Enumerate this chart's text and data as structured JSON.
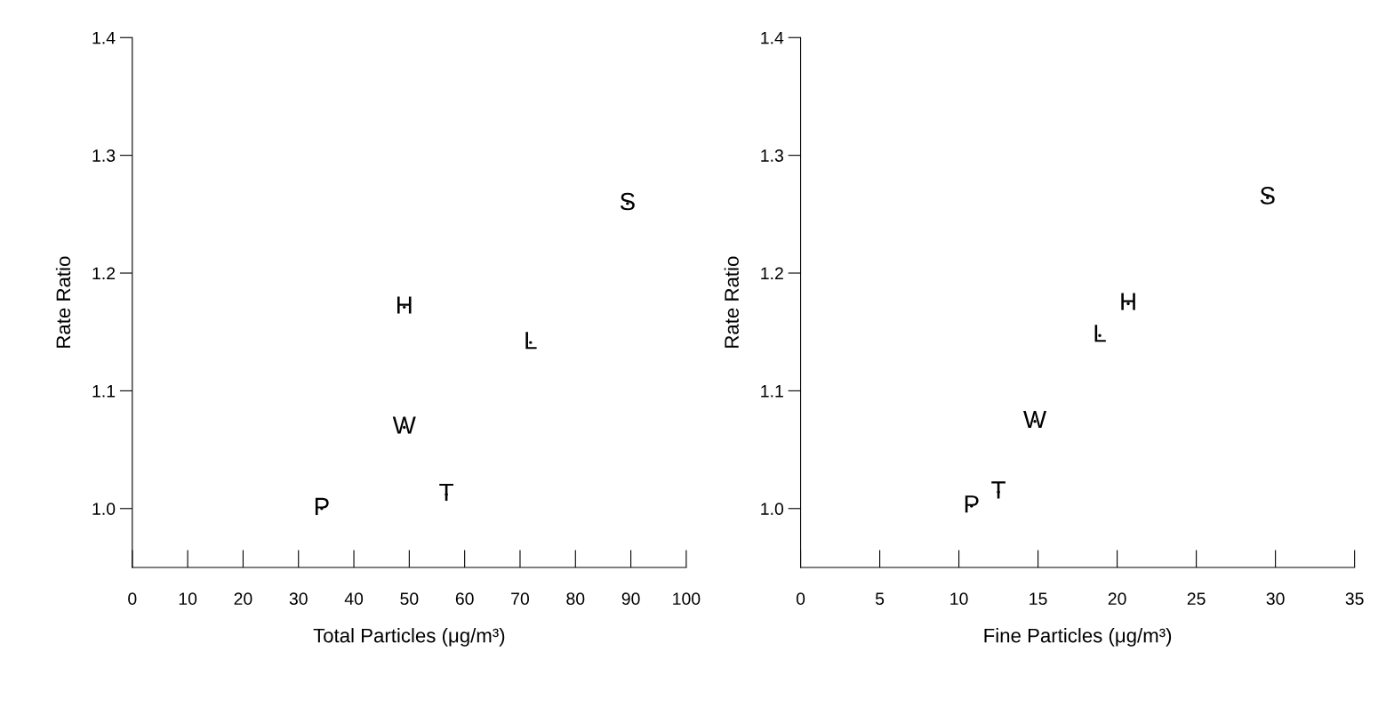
{
  "chart_data": [
    {
      "type": "scatter",
      "xlabel": "Total Particles (μg/m³)",
      "ylabel": "Rate Ratio",
      "xlim": [
        0,
        100
      ],
      "ylim": [
        0.95,
        1.4
      ],
      "xticks": [
        0,
        10,
        20,
        30,
        40,
        50,
        60,
        70,
        80,
        90,
        100
      ],
      "yticks": [
        {
          "value": 1,
          "label": "1.0"
        },
        1.1,
        1.2,
        1.3,
        1.4
      ],
      "grid": false,
      "legend": false,
      "series": [
        {
          "name": "P",
          "color": "#000000",
          "x": [
            34.2
          ],
          "values": [
            1.0
          ]
        },
        {
          "name": "H",
          "color": "#000000",
          "x": [
            49.1
          ],
          "values": [
            1.171
          ]
        },
        {
          "name": "W",
          "color": "#000000",
          "x": [
            49.1
          ],
          "values": [
            1.069
          ]
        },
        {
          "name": "T",
          "color": "#000000",
          "x": [
            56.7
          ],
          "values": [
            1.012
          ]
        },
        {
          "name": "L",
          "color": "#000000",
          "x": [
            71.9
          ],
          "values": [
            1.141
          ]
        },
        {
          "name": "S",
          "color": "#000000",
          "x": [
            89.4
          ],
          "values": [
            1.259
          ]
        }
      ]
    },
    {
      "type": "scatter",
      "xlabel": "Fine Particles (μg/m³)",
      "ylabel": "Rate Ratio",
      "xlim": [
        0,
        35
      ],
      "ylim": [
        0.95,
        1.4
      ],
      "xticks": [
        0,
        5,
        10,
        15,
        20,
        25,
        30,
        35
      ],
      "yticks": [
        {
          "value": 1,
          "label": "1.0"
        },
        1.1,
        1.2,
        1.3,
        1.4
      ],
      "grid": false,
      "legend": false,
      "series": [
        {
          "name": "P",
          "color": "#000000",
          "x": [
            10.8
          ],
          "values": [
            1.002
          ]
        },
        {
          "name": "T",
          "color": "#000000",
          "x": [
            12.5
          ],
          "values": [
            1.014
          ]
        },
        {
          "name": "W",
          "color": "#000000",
          "x": [
            14.8
          ],
          "values": [
            1.074
          ]
        },
        {
          "name": "L",
          "color": "#000000",
          "x": [
            18.9
          ],
          "values": [
            1.147
          ]
        },
        {
          "name": "H",
          "color": "#000000",
          "x": [
            20.7
          ],
          "values": [
            1.174
          ]
        },
        {
          "name": "S",
          "color": "#000000",
          "x": [
            29.5
          ],
          "values": [
            1.264
          ]
        }
      ]
    }
  ]
}
